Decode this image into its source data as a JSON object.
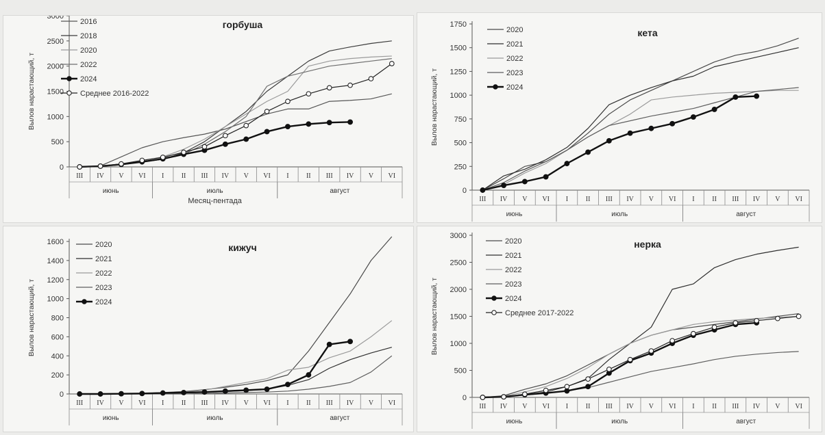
{
  "chart_data": [
    {
      "type": "line",
      "title": "горбуша",
      "ylabel": "Вылов нарастающий, т",
      "xlabel": "Месяц-пентада",
      "ylim": [
        0,
        3000
      ],
      "yticks": [
        0,
        500,
        1000,
        1500,
        2000,
        2500,
        3000
      ],
      "categories": [
        "III",
        "IV",
        "V",
        "VI",
        "I",
        "II",
        "III",
        "IV",
        "V",
        "VI",
        "I",
        "II",
        "III",
        "IV",
        "V",
        "VI"
      ],
      "months": [
        {
          "label": "июнь",
          "start": 0,
          "end": 4
        },
        {
          "label": "июль",
          "start": 4,
          "end": 10
        },
        {
          "label": "август",
          "start": 10,
          "end": 16
        }
      ],
      "grid": false,
      "legend_position": "top-left",
      "series": [
        {
          "name": "2016",
          "color": "#555555",
          "width": 1.2,
          "marker": "none",
          "values": [
            0,
            20,
            200,
            380,
            500,
            580,
            650,
            750,
            900,
            1050,
            1150,
            1150,
            1300,
            1320,
            1350,
            1450
          ]
        },
        {
          "name": "2018",
          "color": "#3a3a3a",
          "width": 1.2,
          "marker": "none",
          "values": [
            0,
            20,
            50,
            100,
            150,
            280,
            500,
            800,
            1100,
            1500,
            1800,
            2100,
            2300,
            2380,
            2450,
            2500
          ]
        },
        {
          "name": "2020",
          "color": "#9a9a9a",
          "width": 1.2,
          "marker": "none",
          "values": [
            0,
            20,
            50,
            120,
            200,
            350,
            550,
            800,
            1050,
            1300,
            1500,
            2000,
            2100,
            2150,
            2180,
            2200
          ]
        },
        {
          "name": "2022",
          "color": "#6e6e6e",
          "width": 1.2,
          "marker": "none",
          "values": [
            0,
            10,
            40,
            100,
            150,
            250,
            450,
            700,
            1000,
            1600,
            1800,
            1900,
            2000,
            2050,
            2100,
            2150
          ]
        },
        {
          "name": "2024",
          "color": "#111111",
          "width": 2.4,
          "marker": "filled",
          "values": [
            0,
            15,
            50,
            100,
            160,
            250,
            330,
            450,
            550,
            700,
            800,
            850,
            880,
            890,
            null,
            null
          ]
        },
        {
          "name": "Среднее 2016-2022",
          "color": "#222222",
          "width": 1.2,
          "marker": "open",
          "values": [
            0,
            15,
            60,
            130,
            190,
            290,
            400,
            620,
            820,
            1100,
            1300,
            1450,
            1570,
            1620,
            1750,
            2050
          ]
        }
      ]
    },
    {
      "type": "line",
      "title": "кета",
      "ylabel": "Вылов нарастающий, т",
      "xlabel": "",
      "ylim": [
        0,
        1750
      ],
      "yticks": [
        0,
        250,
        500,
        750,
        1000,
        1250,
        1500,
        1750
      ],
      "categories": [
        "III",
        "IV",
        "V",
        "VI",
        "I",
        "II",
        "III",
        "IV",
        "V",
        "VI",
        "I",
        "II",
        "III",
        "IV",
        "V",
        "VI"
      ],
      "months": [
        {
          "label": "июнь",
          "start": 0,
          "end": 4
        },
        {
          "label": "июль",
          "start": 4,
          "end": 10
        },
        {
          "label": "август",
          "start": 10,
          "end": 16
        }
      ],
      "grid": false,
      "legend_position": "top-left",
      "series": [
        {
          "name": "2020",
          "color": "#4a4a4a",
          "width": 1.2,
          "marker": "none",
          "values": [
            0,
            120,
            250,
            300,
            420,
            600,
            800,
            950,
            1050,
            1150,
            1250,
            1350,
            1420,
            1460,
            1520,
            1600
          ]
        },
        {
          "name": "2021",
          "color": "#2e2e2e",
          "width": 1.2,
          "marker": "none",
          "values": [
            0,
            150,
            220,
            320,
            450,
            650,
            900,
            1000,
            1080,
            1150,
            1200,
            1300,
            1350,
            1400,
            1450,
            1500
          ]
        },
        {
          "name": "2022",
          "color": "#9a9a9a",
          "width": 1.2,
          "marker": "none",
          "values": [
            0,
            60,
            180,
            280,
            420,
            560,
            680,
            800,
            950,
            980,
            1000,
            1020,
            1030,
            1040,
            1050,
            1050
          ]
        },
        {
          "name": "2023",
          "color": "#5e5e5e",
          "width": 1.2,
          "marker": "none",
          "values": [
            0,
            80,
            200,
            300,
            420,
            560,
            680,
            730,
            780,
            820,
            860,
            920,
            980,
            1040,
            1060,
            1080
          ]
        },
        {
          "name": "2024",
          "color": "#111111",
          "width": 2.4,
          "marker": "filled",
          "values": [
            0,
            50,
            90,
            140,
            280,
            400,
            520,
            600,
            650,
            700,
            770,
            850,
            980,
            990,
            null,
            null
          ]
        }
      ]
    },
    {
      "type": "line",
      "title": "кижуч",
      "ylabel": "Вылов нарастающий, т",
      "xlabel": "",
      "ylim": [
        0,
        1600
      ],
      "yticks": [
        0,
        200,
        400,
        600,
        800,
        1000,
        1200,
        1400,
        1600
      ],
      "categories": [
        "III",
        "IV",
        "V",
        "VI",
        "I",
        "II",
        "III",
        "IV",
        "V",
        "VI",
        "I",
        "II",
        "III",
        "IV",
        "V",
        "VI"
      ],
      "months": [
        {
          "label": "июнь",
          "start": 0,
          "end": 4
        },
        {
          "label": "июль",
          "start": 4,
          "end": 10
        },
        {
          "label": "август",
          "start": 10,
          "end": 16
        }
      ],
      "grid": false,
      "legend_position": "top-left",
      "series": [
        {
          "name": "2020",
          "color": "#4a4a4a",
          "width": 1.2,
          "marker": "none",
          "values": [
            0,
            0,
            0,
            5,
            15,
            25,
            45,
            70,
            100,
            140,
            200,
            450,
            750,
            1050,
            1400,
            1650
          ]
        },
        {
          "name": "2021",
          "color": "#2e2e2e",
          "width": 1.2,
          "marker": "none",
          "values": [
            0,
            0,
            0,
            0,
            5,
            10,
            15,
            25,
            35,
            50,
            90,
            150,
            270,
            360,
            430,
            490
          ]
        },
        {
          "name": "2022",
          "color": "#9a9a9a",
          "width": 1.2,
          "marker": "none",
          "values": [
            0,
            0,
            0,
            2,
            8,
            20,
            40,
            80,
            120,
            160,
            250,
            280,
            380,
            450,
            600,
            770
          ]
        },
        {
          "name": "2023",
          "color": "#5e5e5e",
          "width": 1.2,
          "marker": "none",
          "values": [
            0,
            0,
            0,
            0,
            0,
            0,
            5,
            10,
            15,
            20,
            30,
            50,
            80,
            120,
            230,
            400
          ]
        },
        {
          "name": "2024",
          "color": "#111111",
          "width": 2.4,
          "marker": "filled",
          "values": [
            0,
            0,
            2,
            5,
            10,
            15,
            20,
            30,
            40,
            50,
            100,
            200,
            520,
            550,
            null,
            null
          ]
        }
      ]
    },
    {
      "type": "line",
      "title": "нерка",
      "ylabel": "Вылов нарастающий, т",
      "xlabel": "",
      "ylim": [
        0,
        3000
      ],
      "yticks": [
        0,
        500,
        1000,
        1500,
        2000,
        2500,
        3000
      ],
      "categories": [
        "III",
        "IV",
        "V",
        "VI",
        "I",
        "II",
        "III",
        "IV",
        "V",
        "VI",
        "I",
        "II",
        "III",
        "IV",
        "V",
        "VI"
      ],
      "months": [
        {
          "label": "июнь",
          "start": 0,
          "end": 4
        },
        {
          "label": "июль",
          "start": 4,
          "end": 10
        },
        {
          "label": "август",
          "start": 10,
          "end": 16
        }
      ],
      "grid": false,
      "legend_position": "top-left",
      "series": [
        {
          "name": "2020",
          "color": "#4a4a4a",
          "width": 1.2,
          "marker": "none",
          "values": [
            0,
            30,
            150,
            250,
            400,
            600,
            800,
            1000,
            1150,
            1250,
            1300,
            1350,
            1400,
            1450,
            1500,
            1550
          ]
        },
        {
          "name": "2021",
          "color": "#2e2e2e",
          "width": 1.2,
          "marker": "none",
          "values": [
            0,
            10,
            50,
            100,
            200,
            350,
            700,
            1000,
            1300,
            2000,
            2100,
            2400,
            2550,
            2650,
            2720,
            2780
          ]
        },
        {
          "name": "2022",
          "color": "#9a9a9a",
          "width": 1.2,
          "marker": "none",
          "values": [
            0,
            20,
            100,
            200,
            350,
            550,
            800,
            1000,
            1150,
            1250,
            1350,
            1400,
            1430,
            1460,
            1480,
            1500
          ]
        },
        {
          "name": "2023",
          "color": "#5e5e5e",
          "width": 1.2,
          "marker": "none",
          "values": [
            0,
            10,
            40,
            80,
            120,
            180,
            280,
            380,
            480,
            550,
            620,
            700,
            760,
            800,
            830,
            850
          ]
        },
        {
          "name": "2024",
          "color": "#111111",
          "width": 2.4,
          "marker": "filled",
          "values": [
            0,
            10,
            50,
            80,
            120,
            200,
            450,
            680,
            820,
            1000,
            1150,
            1250,
            1350,
            1380,
            null,
            null
          ]
        },
        {
          "name": "Среднее 2017-2022",
          "color": "#222222",
          "width": 1.2,
          "marker": "open",
          "values": [
            0,
            10,
            60,
            130,
            200,
            340,
            520,
            700,
            860,
            1050,
            1180,
            1300,
            1380,
            1420,
            1460,
            1500
          ]
        }
      ]
    }
  ]
}
